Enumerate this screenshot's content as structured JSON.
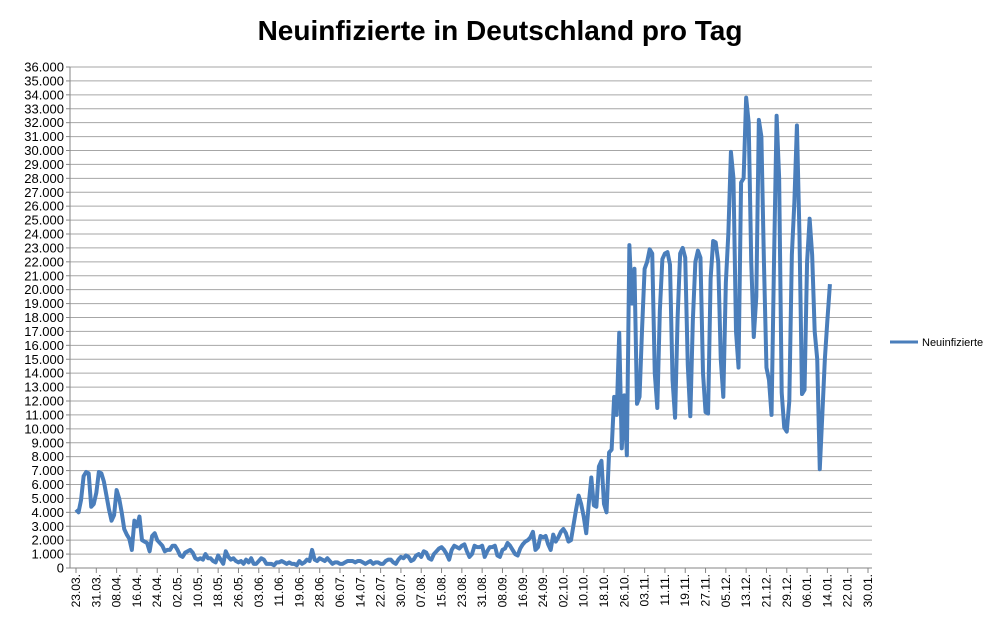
{
  "chart_data": {
    "type": "line",
    "title": "Neuinfizierte in Deutschland pro Tag",
    "categories": [
      "23.03.",
      null,
      null,
      null,
      null,
      null,
      null,
      null,
      "31.03.",
      null,
      null,
      null,
      null,
      null,
      null,
      null,
      "08.04.",
      null,
      null,
      null,
      null,
      null,
      null,
      null,
      "16.04.",
      null,
      null,
      null,
      null,
      null,
      null,
      null,
      "24.04.",
      null,
      null,
      null,
      null,
      null,
      null,
      null,
      "02.05.",
      null,
      null,
      null,
      null,
      null,
      null,
      null,
      "10.05.",
      null,
      null,
      null,
      null,
      null,
      null,
      null,
      "18.05.",
      null,
      null,
      null,
      null,
      null,
      null,
      null,
      "26.05.",
      null,
      null,
      null,
      null,
      null,
      null,
      null,
      "03.06.",
      null,
      null,
      null,
      null,
      null,
      null,
      null,
      "11.06.",
      null,
      null,
      null,
      null,
      null,
      null,
      null,
      "19.06.",
      null,
      null,
      null,
      null,
      null,
      null,
      null,
      "28.06.",
      null,
      null,
      null,
      null,
      null,
      null,
      null,
      "06.07.",
      null,
      null,
      null,
      null,
      null,
      null,
      null,
      "14.07.",
      null,
      null,
      null,
      null,
      null,
      null,
      null,
      "22.07.",
      null,
      null,
      null,
      null,
      null,
      null,
      null,
      "30.07.",
      null,
      null,
      null,
      null,
      null,
      null,
      null,
      "07.08.",
      null,
      null,
      null,
      null,
      null,
      null,
      null,
      "15.08.",
      null,
      null,
      null,
      null,
      null,
      null,
      null,
      "23.08.",
      null,
      null,
      null,
      null,
      null,
      null,
      null,
      "31.08.",
      null,
      null,
      null,
      null,
      null,
      null,
      null,
      "08.09.",
      null,
      null,
      null,
      null,
      null,
      null,
      null,
      "16.09.",
      null,
      null,
      null,
      null,
      null,
      null,
      null,
      "24.09.",
      null,
      null,
      null,
      null,
      null,
      null,
      null,
      "02.10.",
      null,
      null,
      null,
      null,
      null,
      null,
      null,
      "10.10.",
      null,
      null,
      null,
      null,
      null,
      null,
      null,
      "18.10.",
      null,
      null,
      null,
      null,
      null,
      null,
      null,
      "26.10.",
      null,
      null,
      null,
      null,
      null,
      null,
      null,
      "03.11.",
      null,
      null,
      null,
      null,
      null,
      null,
      null,
      "11.11.",
      null,
      null,
      null,
      null,
      null,
      null,
      null,
      "19.11.",
      null,
      null,
      null,
      null,
      null,
      null,
      null,
      "27.11.",
      null,
      null,
      null,
      null,
      null,
      null,
      null,
      "05.12.",
      null,
      null,
      null,
      null,
      null,
      null,
      null,
      "13.12.",
      null,
      null,
      null,
      null,
      null,
      null,
      null,
      "21.12.",
      null,
      null,
      null,
      null,
      null,
      null,
      null,
      "29.12.",
      null,
      null,
      null,
      null,
      null,
      null,
      null,
      "06.01.",
      null,
      null,
      null,
      null,
      null,
      null,
      null,
      "14.01.",
      null,
      null,
      null,
      null,
      null,
      null,
      null,
      "22.01.",
      null,
      null,
      null,
      null,
      null,
      null,
      null,
      "30.01."
    ],
    "series": [
      {
        "name": "Neuinfizierte",
        "color": "#4a7ebb",
        "values": [
          4200,
          4000,
          4900,
          6600,
          6900,
          6800,
          4400,
          4600,
          5400,
          6900,
          6800,
          6200,
          5200,
          4200,
          3400,
          3800,
          5600,
          5000,
          4000,
          2800,
          2400,
          2100,
          1300,
          3400,
          3000,
          3700,
          2000,
          1900,
          1800,
          1200,
          2300,
          2500,
          2000,
          1800,
          1600,
          1200,
          1300,
          1300,
          1600,
          1600,
          1300,
          900,
          800,
          1100,
          1200,
          1300,
          1100,
          700,
          600,
          700,
          600,
          1000,
          700,
          700,
          500,
          400,
          900,
          600,
          300,
          1200,
          800,
          600,
          700,
          500,
          400,
          500,
          300,
          600,
          400,
          700,
          300,
          300,
          500,
          700,
          600,
          300,
          300,
          300,
          200,
          400,
          400,
          500,
          400,
          300,
          400,
          300,
          300,
          200,
          500,
          300,
          400,
          600,
          500,
          1300,
          600,
          500,
          700,
          600,
          500,
          700,
          500,
          300,
          400,
          400,
          300,
          300,
          400,
          500,
          500,
          500,
          400,
          500,
          500,
          400,
          300,
          400,
          500,
          300,
          400,
          400,
          300,
          300,
          500,
          600,
          600,
          400,
          300,
          600,
          800,
          700,
          900,
          800,
          500,
          600,
          900,
          1000,
          800,
          1200,
          1100,
          700,
          600,
          1000,
          1200,
          1400,
          1500,
          1300,
          1000,
          600,
          1300,
          1600,
          1500,
          1400,
          1600,
          1700,
          1200,
          800,
          1000,
          1600,
          1500,
          1500,
          1600,
          800,
          1200,
          1500,
          1500,
          1600,
          900,
          800,
          1300,
          1400,
          1800,
          1600,
          1300,
          1000,
          900,
          1400,
          1700,
          1900,
          2000,
          2200,
          2600,
          1300,
          1500,
          2300,
          2200,
          2300,
          1700,
          1300,
          2400,
          1900,
          2200,
          2600,
          2800,
          2500,
          1900,
          2000,
          3100,
          4200,
          5200,
          4600,
          3700,
          2500,
          4600,
          6500,
          4500,
          4400,
          7300,
          7700,
          4600,
          4000,
          8300,
          8500,
          12300,
          11000,
          16900,
          8600,
          12400,
          8100,
          23200,
          19000,
          21500,
          11800,
          12300,
          17200,
          21500,
          22000,
          22900,
          22600,
          14000,
          11500,
          18500,
          22200,
          22600,
          22700,
          21800,
          13500,
          10800,
          18000,
          22600,
          23000,
          22300,
          14600,
          10900,
          17800,
          22000,
          22800,
          22300,
          14000,
          11200,
          11100,
          20800,
          23500,
          23400,
          22000,
          15000,
          12300,
          20500,
          24100,
          29900,
          28000,
          17000,
          14400,
          27700,
          28000,
          33800,
          32000,
          22000,
          16600,
          19500,
          32200,
          31000,
          22000,
          14400,
          13500,
          11000,
          22300,
          32500,
          28000,
          12600,
          10100,
          9800,
          12000,
          22500,
          26300,
          31800,
          24000,
          12500,
          12800,
          22000,
          25100,
          22500,
          17000,
          15000,
          7100,
          11000,
          15000,
          17800,
          20400,
          null,
          null,
          null,
          null,
          null,
          null,
          null,
          null,
          null,
          null,
          null,
          null,
          null,
          null,
          null
        ]
      }
    ],
    "ylim": [
      0,
      36000
    ],
    "yticks": [
      0,
      {
        "value": 1000,
        "label": "1.000"
      },
      {
        "value": 2000,
        "label": "2.000"
      },
      {
        "value": 3000,
        "label": "3.000"
      },
      {
        "value": 4000,
        "label": "4.000"
      },
      {
        "value": 5000,
        "label": "5.000"
      },
      {
        "value": 6000,
        "label": "6.000"
      },
      {
        "value": 7000,
        "label": "7.000"
      },
      {
        "value": 8000,
        "label": "8.000"
      },
      {
        "value": 9000,
        "label": "9.000"
      },
      {
        "value": 10000,
        "label": "10.000"
      },
      {
        "value": 11000,
        "label": "11.000"
      },
      {
        "value": 12000,
        "label": "12.000"
      },
      {
        "value": 13000,
        "label": "13.000"
      },
      {
        "value": 14000,
        "label": "14.000"
      },
      {
        "value": 15000,
        "label": "15.000"
      },
      {
        "value": 16000,
        "label": "16.000"
      },
      {
        "value": 17000,
        "label": "17.000"
      },
      {
        "value": 18000,
        "label": "18.000"
      },
      {
        "value": 19000,
        "label": "19.000"
      },
      {
        "value": 20000,
        "label": "20.000"
      },
      {
        "value": 21000,
        "label": "21.000"
      },
      {
        "value": 22000,
        "label": "22.000"
      },
      {
        "value": 23000,
        "label": "23.000"
      },
      {
        "value": 24000,
        "label": "24.000"
      },
      {
        "value": 25000,
        "label": "25.000"
      },
      {
        "value": 26000,
        "label": "26.000"
      },
      {
        "value": 27000,
        "label": "27.000"
      },
      {
        "value": 28000,
        "label": "28.000"
      },
      {
        "value": 29000,
        "label": "29.000"
      },
      {
        "value": 30000,
        "label": "30.000"
      },
      {
        "value": 31000,
        "label": "31.000"
      },
      {
        "value": 32000,
        "label": "32.000"
      },
      {
        "value": 33000,
        "label": "33.000"
      },
      {
        "value": 34000,
        "label": "34.000"
      },
      {
        "value": 35000,
        "label": "35.000"
      },
      {
        "value": 36000,
        "label": "36.000"
      }
    ],
    "grid": true,
    "legend": "right"
  }
}
